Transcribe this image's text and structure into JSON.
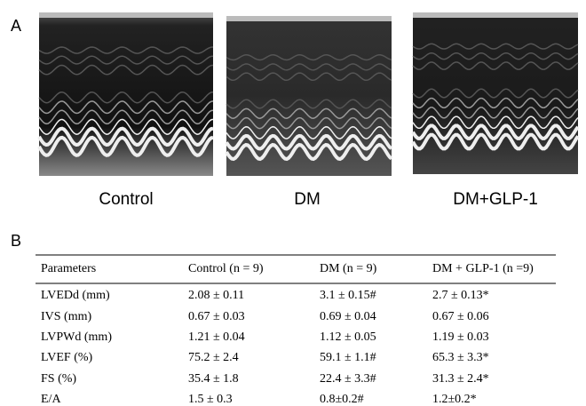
{
  "figure": {
    "panel_a": {
      "label": "A",
      "images": [
        {
          "caption": "Control"
        },
        {
          "caption": "DM"
        },
        {
          "caption": "DM+GLP-1"
        }
      ]
    },
    "panel_b": {
      "label": "B",
      "table": {
        "header": [
          "Parameters",
          "Control (n = 9)",
          "DM (n = 9)",
          "DM + GLP-1 (n =9)"
        ],
        "rows": [
          [
            "LVEDd (mm)",
            "2.08 ± 0.11",
            "3.1 ± 0.15#",
            "2.7 ± 0.13*"
          ],
          [
            "IVS (mm)",
            "0.67 ± 0.03",
            "0.69 ± 0.04",
            "0.67 ± 0.06"
          ],
          [
            "LVPWd (mm)",
            "1.21 ± 0.04",
            "1.12 ± 0.05",
            "1.19 ± 0.03"
          ],
          [
            "LVEF (%)",
            "75.2 ± 2.4",
            "59.1 ± 1.1#",
            "65.3 ± 3.3*"
          ],
          [
            "FS (%)",
            "35.4 ± 1.8",
            "22.4 ± 3.3#",
            "31.3 ± 2.4*"
          ],
          [
            "E/A",
            "1.5 ± 0.3",
            "0.8±0.2#",
            "1.2±0.2*"
          ]
        ]
      }
    }
  }
}
